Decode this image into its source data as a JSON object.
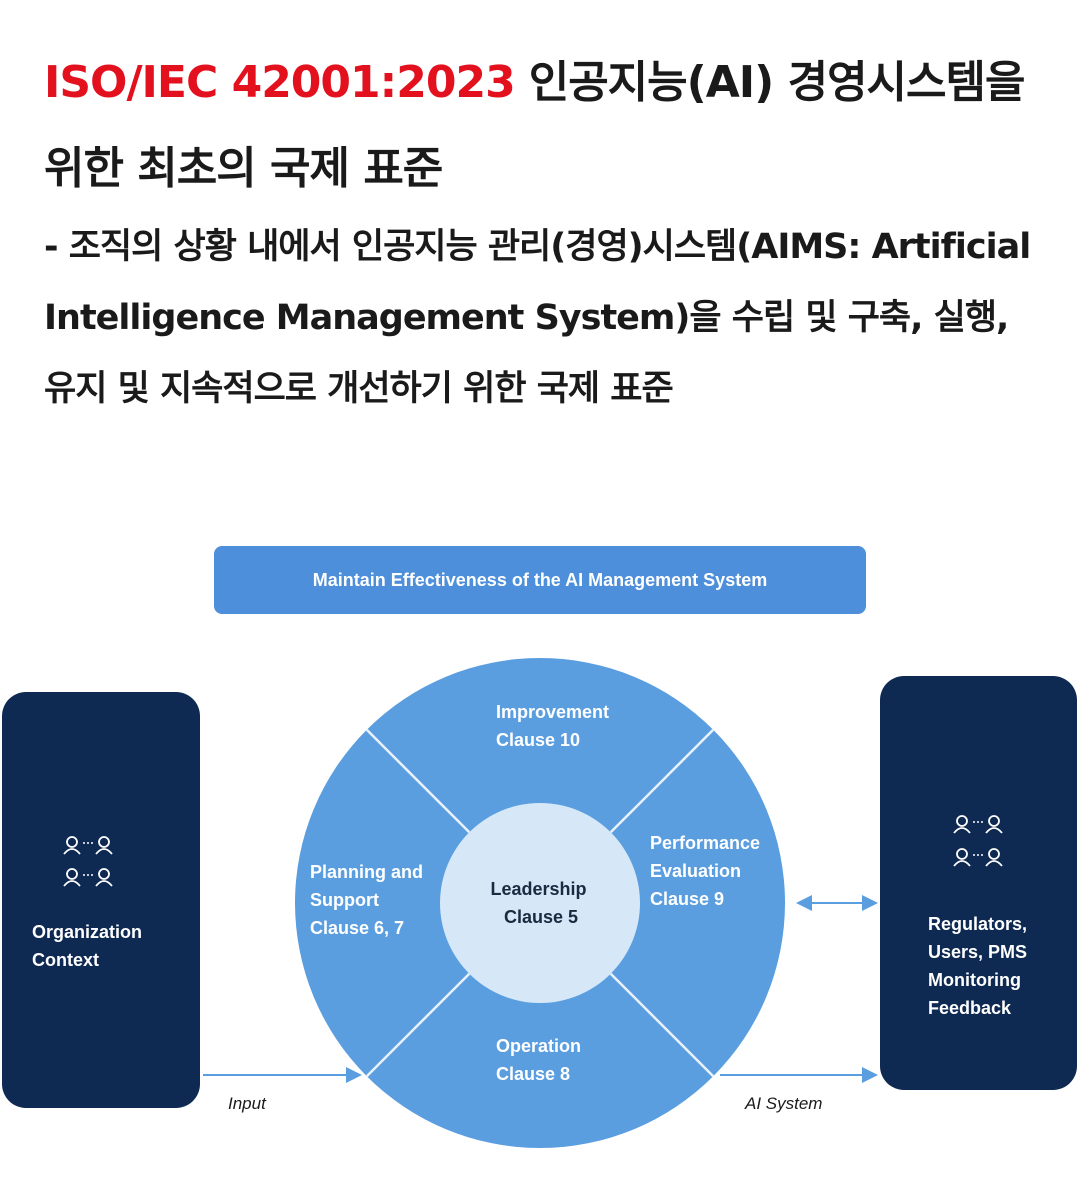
{
  "heading": {
    "standard": "ISO/IEC 42001:2023",
    "title": "인공지능(AI) 경영시스템을 위한 최초의 국제 표준",
    "description": "- 조직의 상황 내에서 인공지능 관리(경영)시스템(AIMS: Artificial Intelligence Management System)을 수립 및 구축, 실행, 유지 및 지속적으로 개선하기 위한 국제 표준"
  },
  "diagram": {
    "banner": "Maintain Effectiveness of the AI Management System",
    "left_box": {
      "icon": "people-network-icon",
      "lines": [
        "Organization",
        "Context"
      ]
    },
    "right_box": {
      "icon": "people-network-icon",
      "lines": [
        "Regulators,",
        "Users, PMS",
        "Monitoring",
        "Feedback"
      ]
    },
    "segments": {
      "improvement": [
        "Improvement",
        "Clause 10"
      ],
      "performance": [
        "Performance",
        "Evaluation",
        "Clause 9"
      ],
      "operation": [
        "Operation",
        "Clause 8"
      ],
      "planning": [
        "Planning and",
        "Support",
        "Clause 6, 7"
      ]
    },
    "center": [
      "Leadership",
      "Clause 5"
    ],
    "input_label": "Input",
    "output_label": "AI System"
  },
  "colors": {
    "accent_red": "#e3101e",
    "navy": "#0f2a52",
    "wheel_blue": "#5a9ee0",
    "center_fill": "#d6e8f7"
  }
}
